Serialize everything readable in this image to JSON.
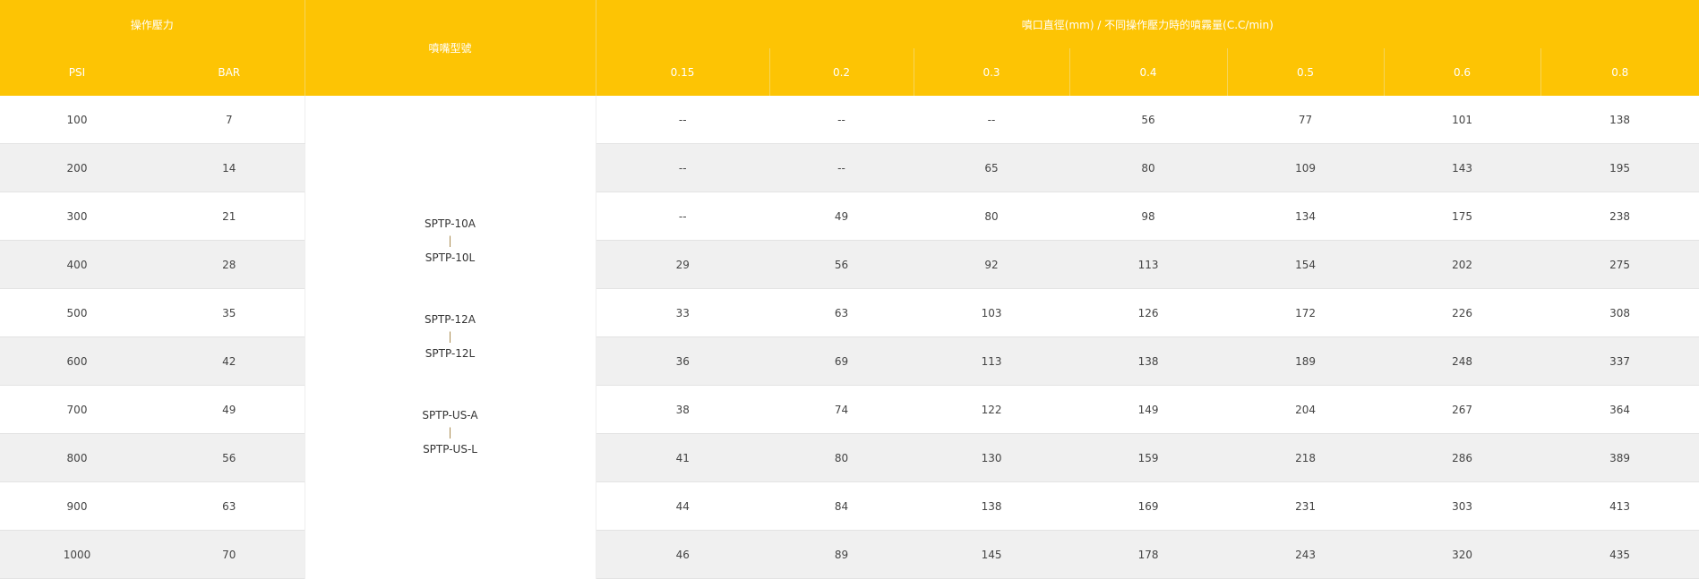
{
  "header": {
    "pressure": "操作壓力",
    "model": "噴嘴型號",
    "flow": "噴口直徑(mm) / 不同操作壓力時的噴霧量(C.C/min)",
    "psi": "PSI",
    "bar": "BAR",
    "diameters": [
      "0.15",
      "0.2",
      "0.3",
      "0.4",
      "0.5",
      "0.6",
      "0.8"
    ]
  },
  "models": [
    {
      "top": "SPTP-10A",
      "sep": "|",
      "bottom": "SPTP-10L"
    },
    {
      "top": "SPTP-12A",
      "sep": "|",
      "bottom": "SPTP-12L"
    },
    {
      "top": "SPTP-US-A",
      "sep": "|",
      "bottom": "SPTP-US-L"
    }
  ],
  "rows": [
    {
      "psi": "100",
      "bar": "7",
      "v": [
        "--",
        "--",
        "--",
        "56",
        "77",
        "101",
        "138"
      ]
    },
    {
      "psi": "200",
      "bar": "14",
      "v": [
        "--",
        "--",
        "65",
        "80",
        "109",
        "143",
        "195"
      ]
    },
    {
      "psi": "300",
      "bar": "21",
      "v": [
        "--",
        "49",
        "80",
        "98",
        "134",
        "175",
        "238"
      ]
    },
    {
      "psi": "400",
      "bar": "28",
      "v": [
        "29",
        "56",
        "92",
        "113",
        "154",
        "202",
        "275"
      ]
    },
    {
      "psi": "500",
      "bar": "35",
      "v": [
        "33",
        "63",
        "103",
        "126",
        "172",
        "226",
        "308"
      ]
    },
    {
      "psi": "600",
      "bar": "42",
      "v": [
        "36",
        "69",
        "113",
        "138",
        "189",
        "248",
        "337"
      ]
    },
    {
      "psi": "700",
      "bar": "49",
      "v": [
        "38",
        "74",
        "122",
        "149",
        "204",
        "267",
        "364"
      ]
    },
    {
      "psi": "800",
      "bar": "56",
      "v": [
        "41",
        "80",
        "130",
        "159",
        "218",
        "286",
        "389"
      ]
    },
    {
      "psi": "900",
      "bar": "63",
      "v": [
        "44",
        "84",
        "138",
        "169",
        "231",
        "303",
        "413"
      ]
    },
    {
      "psi": "1000",
      "bar": "70",
      "v": [
        "46",
        "89",
        "145",
        "178",
        "243",
        "320",
        "435"
      ]
    }
  ],
  "colors": {
    "header": "#fdc404",
    "stripe": "#f0f0f0",
    "separator": "#a88a4e"
  }
}
